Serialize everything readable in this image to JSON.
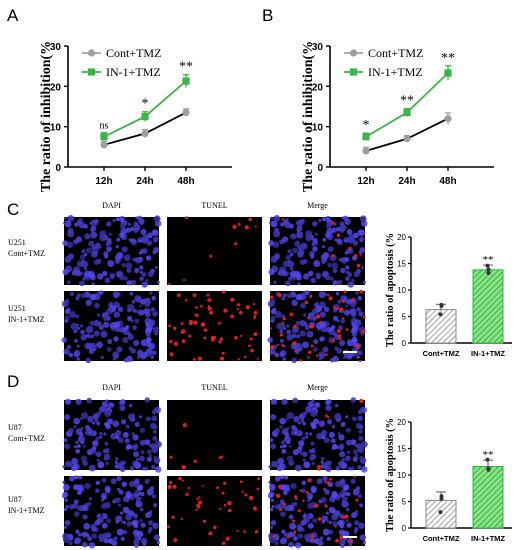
{
  "panels": {
    "a": "A",
    "b": "B",
    "c": "C",
    "d": "D"
  },
  "micro": {
    "col_headers": [
      "DAPI",
      "TUNEL",
      "Merge"
    ],
    "c_rows": [
      {
        "line1": "U251",
        "line2": "Cont+TMZ"
      },
      {
        "line1": "U251",
        "line2": "IN-1+TMZ"
      }
    ],
    "d_rows": [
      {
        "line1": "U87",
        "line2": "Cont+TMZ"
      },
      {
        "line1": "U87",
        "line2": "IN-1+TMZ"
      }
    ]
  },
  "colors": {
    "cont": "#9e9e9e",
    "in1": "#3cb34a",
    "dapi": "#2a2a9a",
    "tunel": "#e02020"
  },
  "chart_data": [
    {
      "id": "A",
      "type": "line",
      "ylabel": "The ratio of inhibition(%",
      "x": [
        "12h",
        "24h",
        "48h"
      ],
      "ylim": [
        0,
        30
      ],
      "yticks": [
        "0",
        "10",
        "20",
        "30"
      ],
      "series": [
        {
          "name": "Cont+TMZ",
          "values": [
            5.5,
            8.3,
            13.5
          ],
          "err": [
            0.8,
            1.0,
            0.9
          ]
        },
        {
          "name": "IN-1+TMZ",
          "values": [
            7.5,
            12.5,
            21.3
          ],
          "err": [
            1.0,
            1.2,
            1.6
          ]
        }
      ],
      "sig": [
        "ns",
        "*",
        "**"
      ]
    },
    {
      "id": "B",
      "type": "line",
      "ylabel": "The ratio of inhibition(%",
      "x": [
        "12h",
        "24h",
        "48h"
      ],
      "ylim": [
        0,
        30
      ],
      "yticks": [
        "0",
        "10",
        "20",
        "30"
      ],
      "series": [
        {
          "name": "Cont+TMZ",
          "values": [
            4.0,
            7.0,
            12.0
          ],
          "err": [
            0.9,
            0.8,
            1.4
          ]
        },
        {
          "name": "IN-1+TMZ",
          "values": [
            7.5,
            13.5,
            23.3
          ],
          "err": [
            0.9,
            1.0,
            1.8
          ]
        }
      ],
      "sig": [
        "*",
        "**",
        "**"
      ]
    },
    {
      "id": "C",
      "type": "bar",
      "ylabel": "The ratio of apoptosis (%",
      "categories": [
        "Cont+TMZ",
        "IN-1+TMZ"
      ],
      "values": [
        6.3,
        13.8
      ],
      "err": [
        1.0,
        0.9
      ],
      "points": [
        [
          7.2,
          5.4,
          7.0
        ],
        [
          13.2,
          14.6,
          13.9
        ]
      ],
      "ylim": [
        0,
        20
      ],
      "yticks": [
        "0",
        "5",
        "10",
        "15",
        "20"
      ],
      "sig": [
        "",
        "**"
      ]
    },
    {
      "id": "D",
      "type": "bar",
      "ylabel": "The ratio of apoptosis (%",
      "categories": [
        "Cont+TMZ",
        "IN-1+TMZ"
      ],
      "values": [
        5.2,
        11.6
      ],
      "err": [
        1.6,
        1.2
      ],
      "points": [
        [
          6.0,
          3.0,
          5.5
        ],
        [
          11.0,
          12.9,
          11.2
        ]
      ],
      "ylim": [
        0,
        20
      ],
      "yticks": [
        "0",
        "5",
        "10",
        "15",
        "20"
      ],
      "sig": [
        "",
        "**"
      ]
    }
  ]
}
